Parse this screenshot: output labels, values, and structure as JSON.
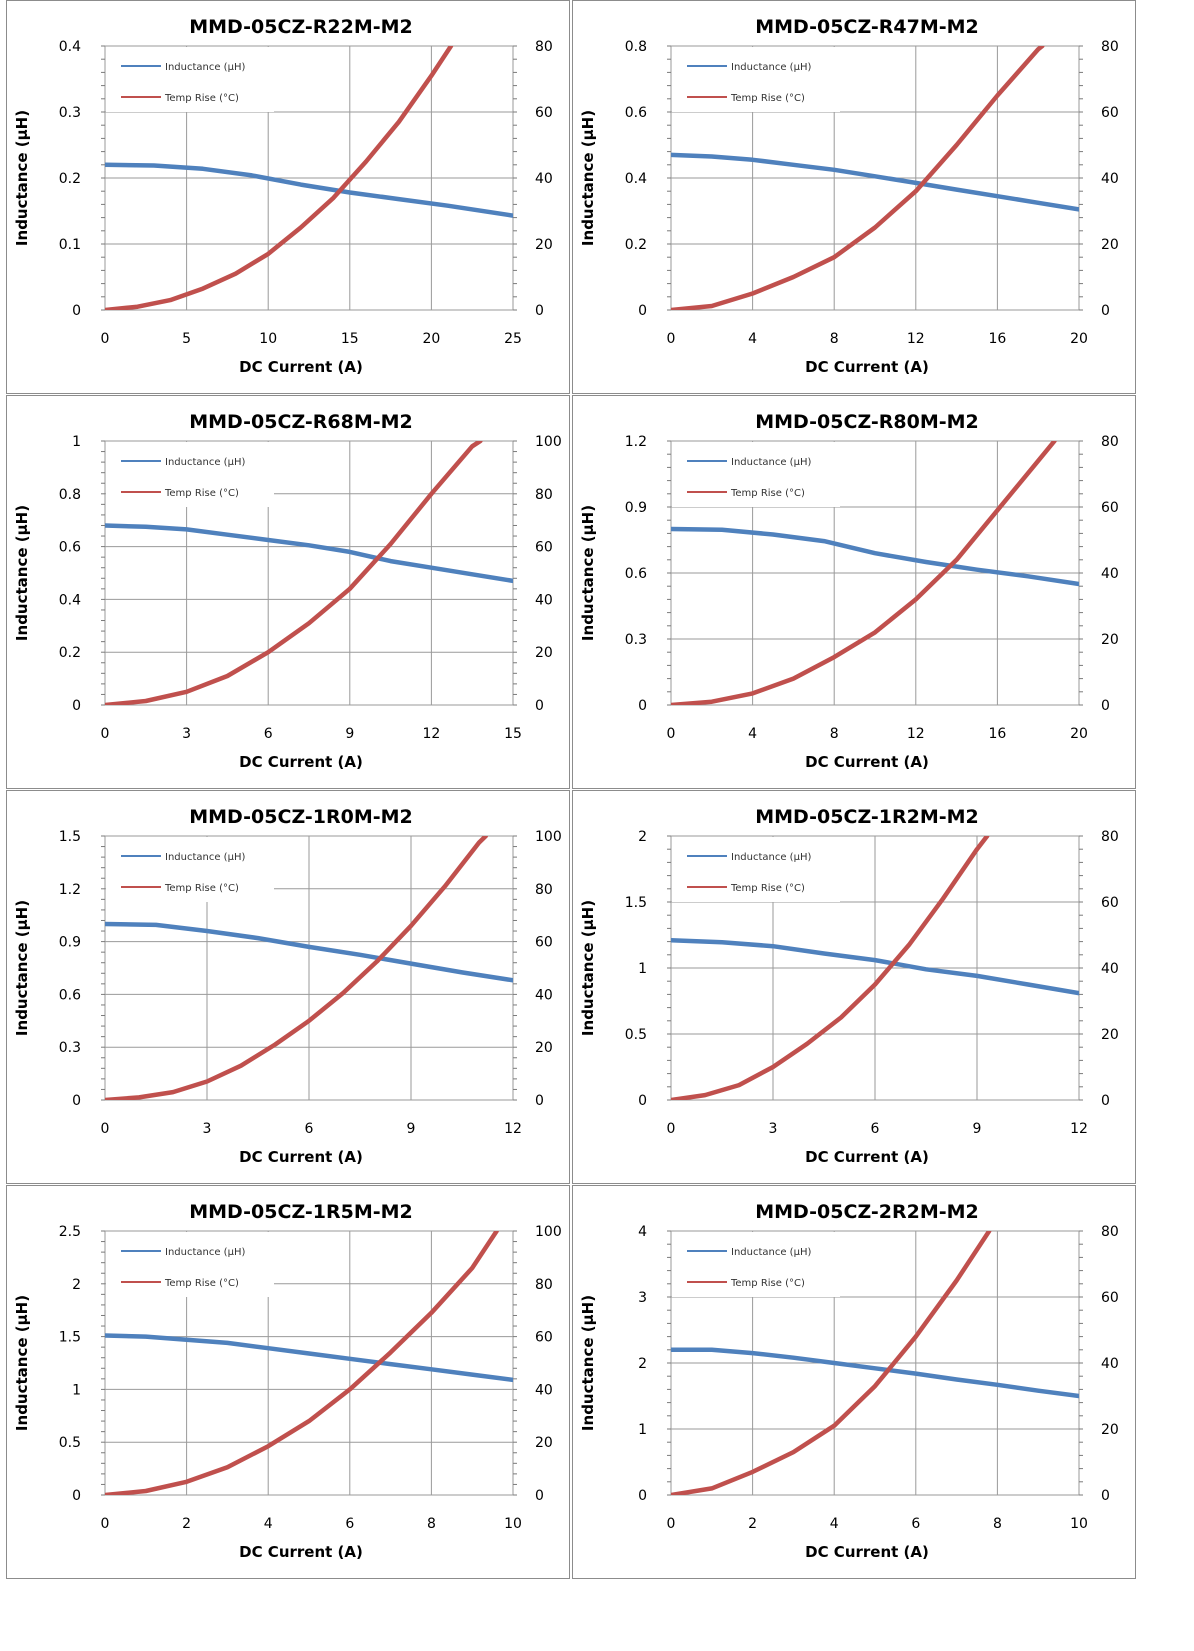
{
  "page": {
    "colors": {
      "inductance": "#4f81bd",
      "temp_rise": "#c0504d",
      "gridline": "#9a9a9a",
      "panel_border": "#8c8c8c",
      "text": "#000000"
    }
  },
  "chart_data": [
    {
      "type": "line",
      "title": "MMD-05CZ-R22M-M2",
      "xlabel": "DC Current (A)",
      "ylabel": "Inductance (µH)",
      "y2label": "",
      "xlim": [
        0,
        25
      ],
      "ylim": [
        0,
        0.4
      ],
      "y2lim": [
        0,
        80
      ],
      "x_ticks": [
        "0",
        "5",
        "10",
        "15",
        "20",
        "25"
      ],
      "y_ticks": [
        "0",
        "0.1",
        "0.2",
        "0.3",
        "0.4"
      ],
      "y2_ticks": [
        "0",
        "20",
        "40",
        "60",
        "80"
      ],
      "grid": true,
      "legend": "top-left",
      "series": [
        {
          "name": "Inductance (µH)",
          "axis": "left",
          "x": [
            0,
            3,
            6,
            9,
            12,
            15,
            18,
            21,
            25
          ],
          "y": [
            0.22,
            0.219,
            0.214,
            0.204,
            0.19,
            0.178,
            0.168,
            0.158,
            0.143
          ]
        },
        {
          "name": "Temp Rise (°C)",
          "axis": "right",
          "x": [
            0,
            2,
            4,
            6,
            8,
            10,
            12,
            14,
            16,
            18,
            20,
            21.2
          ],
          "y": [
            0,
            1,
            3,
            6.5,
            11,
            17,
            25,
            34,
            45,
            57,
            71,
            80
          ]
        }
      ]
    },
    {
      "type": "line",
      "title": "MMD-05CZ-R47M-M2",
      "xlabel": "DC Current (A)",
      "ylabel": "Inductance (µH)",
      "y2label": "",
      "xlim": [
        0,
        20
      ],
      "ylim": [
        0,
        0.8
      ],
      "y2lim": [
        0,
        80
      ],
      "x_ticks": [
        "0",
        "4",
        "8",
        "12",
        "16",
        "20"
      ],
      "y_ticks": [
        "0",
        "0.2",
        "0.4",
        "0.6",
        "0.8"
      ],
      "y2_ticks": [
        "0",
        "20",
        "40",
        "60",
        "80"
      ],
      "grid": true,
      "legend": "top-left",
      "series": [
        {
          "name": "Inductance (µH)",
          "axis": "left",
          "x": [
            0,
            2,
            4,
            6,
            8,
            10,
            12,
            14,
            16,
            18,
            20
          ],
          "y": [
            0.47,
            0.465,
            0.455,
            0.44,
            0.425,
            0.405,
            0.385,
            0.365,
            0.345,
            0.325,
            0.305
          ]
        },
        {
          "name": "Temp Rise (°C)",
          "axis": "right",
          "x": [
            0,
            2,
            4,
            6,
            8,
            10,
            12,
            14,
            16,
            18,
            18.2
          ],
          "y": [
            0,
            1.2,
            5,
            10,
            16,
            25,
            36,
            50,
            65,
            79,
            80
          ]
        }
      ]
    },
    {
      "type": "line",
      "title": "MMD-05CZ-R68M-M2",
      "xlabel": "DC Current (A)",
      "ylabel": "Inductance (µH)",
      "y2label": "",
      "xlim": [
        0,
        15
      ],
      "ylim": [
        0,
        1
      ],
      "y2lim": [
        0,
        100
      ],
      "x_ticks": [
        "0",
        "3",
        "6",
        "9",
        "12",
        "15"
      ],
      "y_ticks": [
        "0",
        "0.2",
        "0.4",
        "0.6",
        "0.8",
        "1"
      ],
      "y2_ticks": [
        "0",
        "20",
        "40",
        "60",
        "80",
        "100"
      ],
      "grid": true,
      "legend": "top-left",
      "series": [
        {
          "name": "Inductance (µH)",
          "axis": "left",
          "x": [
            0,
            1.5,
            3,
            4.5,
            6,
            7.5,
            9,
            10.5,
            12,
            13.5,
            15
          ],
          "y": [
            0.68,
            0.675,
            0.665,
            0.645,
            0.625,
            0.605,
            0.58,
            0.545,
            0.52,
            0.495,
            0.47
          ]
        },
        {
          "name": "Temp Rise (°C)",
          "axis": "right",
          "x": [
            0,
            1.5,
            3,
            4.5,
            6,
            7.5,
            9,
            10.5,
            12,
            13.5,
            13.8
          ],
          "y": [
            0,
            1.5,
            5,
            11,
            20,
            31,
            44,
            61,
            80,
            98,
            100
          ]
        }
      ]
    },
    {
      "type": "line",
      "title": "MMD-05CZ-R80M-M2",
      "xlabel": "DC Current (A)",
      "ylabel": "Inductance (µH)",
      "y2label": "",
      "xlim": [
        0,
        20
      ],
      "ylim": [
        0,
        1.2
      ],
      "y2lim": [
        0,
        80
      ],
      "x_ticks": [
        "0",
        "4",
        "8",
        "12",
        "16",
        "20"
      ],
      "y_ticks": [
        "0",
        "0.3",
        "0.6",
        "0.9",
        "1.2"
      ],
      "y2_ticks": [
        "0",
        "20",
        "40",
        "60",
        "80"
      ],
      "grid": true,
      "legend": "top-left",
      "series": [
        {
          "name": "Inductance (µH)",
          "axis": "left",
          "x": [
            0,
            2.5,
            5,
            7.5,
            10,
            12.5,
            15,
            17.5,
            20
          ],
          "y": [
            0.8,
            0.797,
            0.775,
            0.745,
            0.69,
            0.65,
            0.615,
            0.585,
            0.55
          ]
        },
        {
          "name": "Temp Rise (°C)",
          "axis": "right",
          "x": [
            0,
            2,
            4,
            6,
            8,
            10,
            12,
            14,
            16,
            18,
            18.8
          ],
          "y": [
            0,
            1,
            3.5,
            8,
            14.5,
            22,
            32,
            44,
            59,
            74,
            80
          ]
        }
      ]
    },
    {
      "type": "line",
      "title": "MMD-05CZ-1R0M-M2",
      "xlabel": "DC Current (A)",
      "ylabel": "Inductance (µH)",
      "y2label": "",
      "xlim": [
        0,
        12
      ],
      "ylim": [
        0,
        1.5
      ],
      "y2lim": [
        0,
        100
      ],
      "x_ticks": [
        "0",
        "3",
        "6",
        "9",
        "12"
      ],
      "y_ticks": [
        "0",
        "0.3",
        "0.6",
        "0.9",
        "1.2",
        "1.5"
      ],
      "y2_ticks": [
        "0",
        "20",
        "40",
        "60",
        "80",
        "100"
      ],
      "grid": true,
      "legend": "top-left",
      "series": [
        {
          "name": "Inductance (µH)",
          "axis": "left",
          "x": [
            0,
            1.5,
            3,
            4.5,
            6,
            7.5,
            9,
            10.5,
            12
          ],
          "y": [
            1.0,
            0.995,
            0.96,
            0.92,
            0.87,
            0.825,
            0.775,
            0.725,
            0.68
          ]
        },
        {
          "name": "Temp Rise (°C)",
          "axis": "right",
          "x": [
            0,
            1,
            2,
            3,
            4,
            5,
            6,
            7,
            8,
            9,
            10,
            11,
            11.2
          ],
          "y": [
            0,
            1,
            3,
            7,
            13,
            21,
            30,
            40.5,
            52.5,
            66,
            81,
            97.5,
            100
          ]
        }
      ]
    },
    {
      "type": "line",
      "title": "MMD-05CZ-1R2M-M2",
      "xlabel": "DC Current (A)",
      "ylabel": "Inductance (µH)",
      "y2label": "",
      "xlim": [
        0,
        12
      ],
      "ylim": [
        0,
        2
      ],
      "y2lim": [
        0,
        80
      ],
      "x_ticks": [
        "0",
        "3",
        "6",
        "9",
        "12"
      ],
      "y_ticks": [
        "0",
        "0.5",
        "1",
        "1.5",
        "2"
      ],
      "y2_ticks": [
        "0",
        "20",
        "40",
        "60",
        "80"
      ],
      "grid": true,
      "legend": "top-left",
      "series": [
        {
          "name": "Inductance (µH)",
          "axis": "left",
          "x": [
            0,
            1.5,
            3,
            4.5,
            6,
            7.5,
            9,
            10.5,
            12
          ],
          "y": [
            1.21,
            1.195,
            1.165,
            1.11,
            1.06,
            0.99,
            0.94,
            0.875,
            0.81
          ]
        },
        {
          "name": "Temp Rise (°C)",
          "axis": "right",
          "x": [
            0,
            1,
            2,
            3,
            4,
            5,
            6,
            7,
            8,
            9,
            9.3
          ],
          "y": [
            0,
            1.5,
            4.5,
            10,
            17,
            25,
            35,
            47,
            61,
            76,
            80
          ]
        }
      ]
    },
    {
      "type": "line",
      "title": "MMD-05CZ-1R5M-M2",
      "xlabel": "DC Current (A)",
      "ylabel": "Inductance (µH)",
      "y2label": "",
      "xlim": [
        0,
        10
      ],
      "ylim": [
        0,
        2.5
      ],
      "y2lim": [
        0,
        100
      ],
      "x_ticks": [
        "0",
        "2",
        "4",
        "6",
        "8",
        "10"
      ],
      "y_ticks": [
        "0",
        "0.5",
        "1",
        "1.5",
        "2",
        "2.5"
      ],
      "y2_ticks": [
        "0",
        "20",
        "40",
        "60",
        "80",
        "100"
      ],
      "grid": true,
      "legend": "top-left",
      "series": [
        {
          "name": "Inductance (µH)",
          "axis": "left",
          "x": [
            0,
            1,
            2,
            3,
            4,
            5,
            6,
            7,
            8,
            9,
            10
          ],
          "y": [
            1.51,
            1.5,
            1.47,
            1.44,
            1.39,
            1.34,
            1.29,
            1.24,
            1.19,
            1.14,
            1.09
          ]
        },
        {
          "name": "Temp Rise (°C)",
          "axis": "right",
          "x": [
            0,
            1,
            2,
            3,
            4,
            5,
            6,
            7,
            8,
            9,
            9.6
          ],
          "y": [
            0,
            1.5,
            5,
            10.5,
            18.5,
            28,
            40,
            54,
            69,
            86,
            100
          ]
        }
      ]
    },
    {
      "type": "line",
      "title": "MMD-05CZ-2R2M-M2",
      "xlabel": "DC Current (A)",
      "ylabel": "Inductance (µH)",
      "y2label": "",
      "xlim": [
        0,
        10
      ],
      "ylim": [
        0,
        4
      ],
      "y2lim": [
        0,
        80
      ],
      "x_ticks": [
        "0",
        "2",
        "4",
        "6",
        "8",
        "10"
      ],
      "y_ticks": [
        "0",
        "1",
        "2",
        "3",
        "4"
      ],
      "y2_ticks": [
        "0",
        "20",
        "40",
        "60",
        "80"
      ],
      "grid": true,
      "legend": "top-left",
      "series": [
        {
          "name": "Inductance (µH)",
          "axis": "left",
          "x": [
            0,
            1,
            2,
            3,
            4,
            5,
            6,
            7,
            8,
            9,
            10
          ],
          "y": [
            2.2,
            2.2,
            2.15,
            2.08,
            2.0,
            1.92,
            1.84,
            1.75,
            1.67,
            1.58,
            1.5
          ]
        },
        {
          "name": "Temp Rise (°C)",
          "axis": "right",
          "x": [
            0,
            1,
            2,
            3,
            4,
            5,
            6,
            7,
            7.8
          ],
          "y": [
            0,
            2,
            7,
            13,
            21,
            33,
            48,
            65,
            80
          ]
        }
      ]
    }
  ]
}
